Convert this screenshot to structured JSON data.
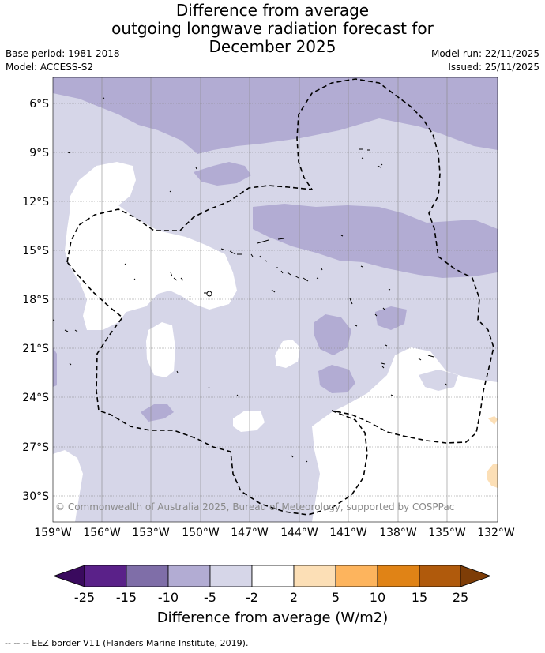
{
  "title": {
    "line1": "Difference from average",
    "line2": "outgoing longwave radiation forecast for",
    "line3": "December 2025"
  },
  "meta": {
    "base_period": "Base period: 1981-2018",
    "model": "Model: ACCESS-S2",
    "model_run": "Model run: 22/11/2025",
    "issued": "Issued: 25/11/2025"
  },
  "map": {
    "copyright": "© Commonwealth of Australia 2025, Bureau of Meteorology, supported by COSPPac",
    "lat_labels": [
      "6°S",
      "9°S",
      "12°S",
      "15°S",
      "18°S",
      "21°S",
      "24°S",
      "27°S",
      "30°S"
    ],
    "lon_labels": [
      "159°W",
      "156°W",
      "153°W",
      "150°W",
      "147°W",
      "144°W",
      "141°W",
      "138°W",
      "135°W",
      "132°W"
    ],
    "colors": {
      "band_lt_minus2": "#d6d6e8",
      "band_minus5_to_minus10": "#b2acd3",
      "band_2_to_5": "#fcdfb6",
      "neutral": "#ffffff"
    }
  },
  "colorbar": {
    "ticks": [
      "-25",
      "-15",
      "-10",
      "-5",
      "-2",
      "2",
      "5",
      "10",
      "15",
      "25"
    ],
    "colors": [
      "#3a0a5e",
      "#5a2189",
      "#7f6ea8",
      "#b2acd3",
      "#d6d6e8",
      "#ffffff",
      "#fcdfb6",
      "#fdb45d",
      "#e08316",
      "#b05a0c",
      "#7e3d07"
    ],
    "title": "Difference from average (W/m2)"
  },
  "footnote": "-- -- -- EEZ border V11 (Flanders Marine Institute, 2019)."
}
